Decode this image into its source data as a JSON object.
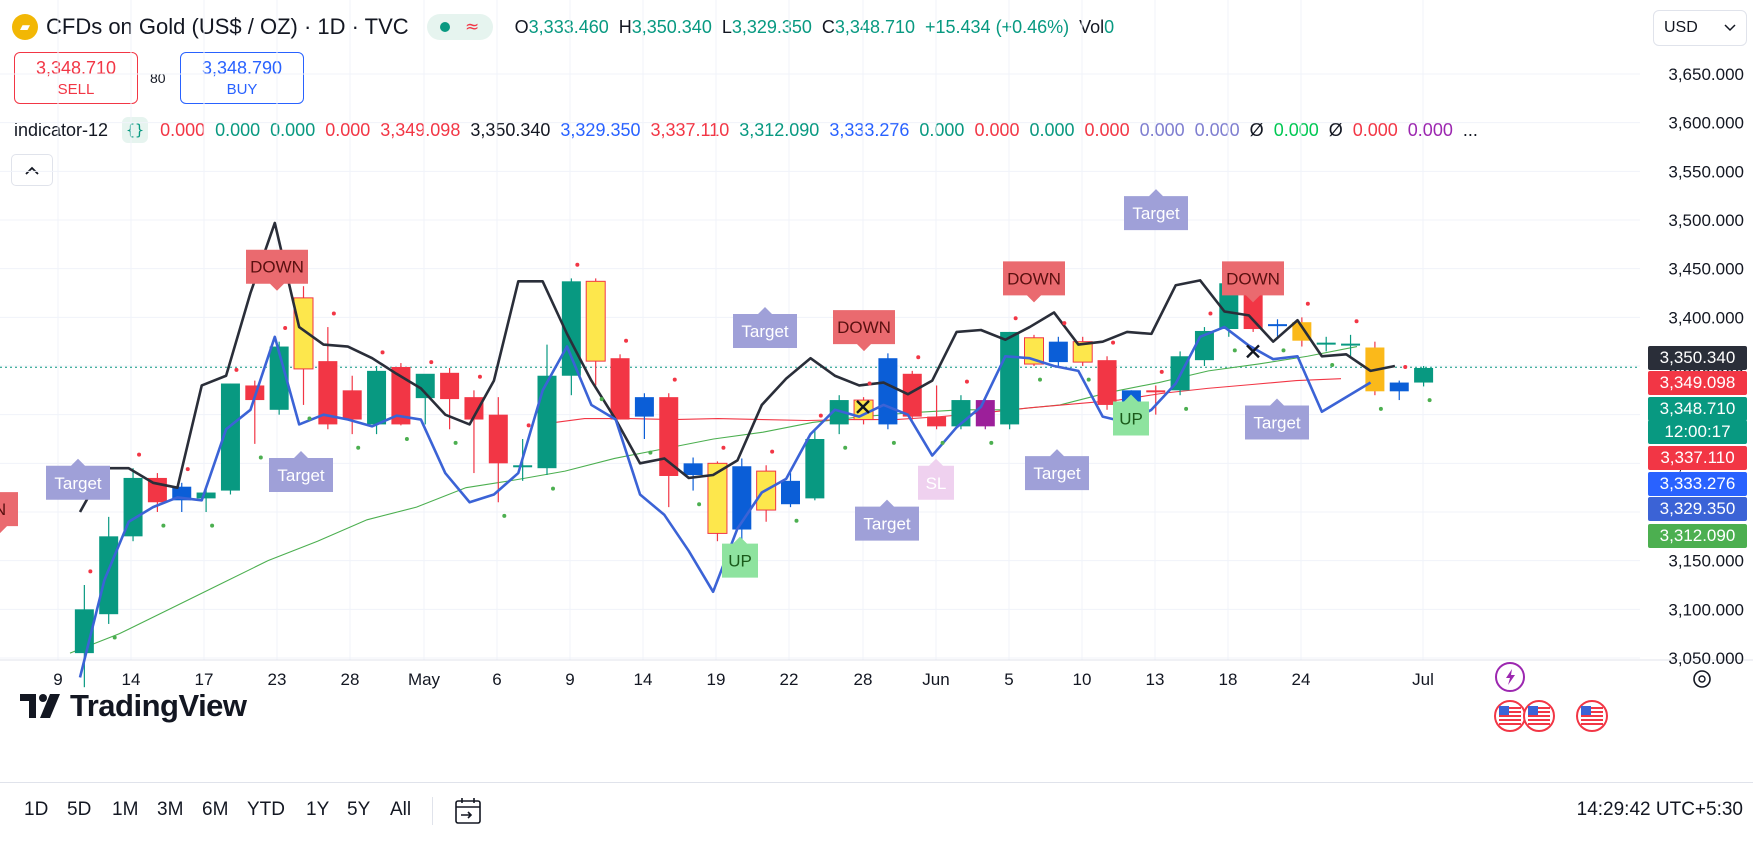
{
  "header": {
    "symbol_title": "CFDs on Gold (US$ / OZ) · 1D · TVC",
    "logo_icon": "gold-bars-icon",
    "market_status_icon": "market-open-dot-icon",
    "data_status_icon": "delayed-data-wave-icon",
    "ohlc": {
      "o_label": "O",
      "o_value": "3,333.460",
      "h_label": "H",
      "h_value": "3,350.340",
      "l_label": "L",
      "l_value": "3,329.350",
      "c_label": "C",
      "c_value": "3,348.710",
      "change": "+15.434 (+0.46%)",
      "vol_label": "Vol",
      "vol_value": "0"
    }
  },
  "currency": {
    "value": "USD",
    "icon": "chevron-down-icon"
  },
  "trade": {
    "sell_price": "3,348.710",
    "sell_label": "SELL",
    "spread": "80",
    "buy_price": "3,348.790",
    "buy_label": "BUY"
  },
  "indicator": {
    "name": "indicator-12",
    "icon": "source-code-braces-icon",
    "values": [
      {
        "text": "0.000",
        "color": "#f23645"
      },
      {
        "text": "0.000",
        "color": "#089981"
      },
      {
        "text": "0.000",
        "color": "#089981"
      },
      {
        "text": "0.000",
        "color": "#f23645"
      },
      {
        "text": "3,349.098",
        "color": "#f23645"
      },
      {
        "text": "3,350.340",
        "color": "#131722"
      },
      {
        "text": "3,329.350",
        "color": "#2962ff"
      },
      {
        "text": "3,337.110",
        "color": "#f23645"
      },
      {
        "text": "3,312.090",
        "color": "#089981"
      },
      {
        "text": "3,333.276",
        "color": "#2962ff"
      },
      {
        "text": "0.000",
        "color": "#089981"
      },
      {
        "text": "0.000",
        "color": "#f23645"
      },
      {
        "text": "0.000",
        "color": "#089981"
      },
      {
        "text": "0.000",
        "color": "#f23645"
      },
      {
        "text": "0.000",
        "color": "#7e7ed0"
      },
      {
        "text": "0.000",
        "color": "#7e7ed0"
      },
      {
        "text": "Ø",
        "color": "#131722"
      },
      {
        "text": "0.000",
        "color": "#00c853"
      },
      {
        "text": "Ø",
        "color": "#131722"
      },
      {
        "text": "0.000",
        "color": "#f23645"
      },
      {
        "text": "0.000",
        "color": "#9c27b0"
      },
      {
        "text": "...",
        "color": "#131722"
      }
    ]
  },
  "collapse_icon": "chevron-up-icon",
  "colors": {
    "up": "#089981",
    "down": "#f23645",
    "blue": "#0b5ed7",
    "yellow": "#fde74c",
    "purple": "#9c1f9a",
    "orange": "#fbb91a",
    "upper_line": "#2a2e39",
    "lower_line": "#3b63d6",
    "ma_red": "#f23645",
    "ma_green": "#4caf50",
    "label_purple": "#9fa0d8",
    "label_red": "#ea6a6f",
    "label_green": "#8ee39f"
  },
  "chart_data": {
    "type": "candlestick",
    "symbol": "CFDs on Gold (US$ / OZ)",
    "interval": "1D",
    "ylim": [
      3045,
      3685
    ],
    "price_axis_labels": [
      "3,650.000",
      "3,600.000",
      "3,550.000",
      "3,500.000",
      "3,450.000",
      "3,400.000",
      "3,350.000",
      "3,300.000",
      "3,250.000",
      "3,200.000",
      "3,150.000",
      "3,100.000",
      "3,050.000"
    ],
    "date_axis_labels": [
      "9",
      "14",
      "17",
      "23",
      "28",
      "May",
      "6",
      "9",
      "14",
      "19",
      "22",
      "28",
      "Jun",
      "5",
      "10",
      "13",
      "18",
      "24",
      "Jul"
    ],
    "candles": [
      {
        "o": 3055,
        "h": 3125,
        "l": 3020,
        "c": 3100,
        "color": "up"
      },
      {
        "o": 3095,
        "h": 3195,
        "l": 3085,
        "c": 3175,
        "color": "up"
      },
      {
        "o": 3175,
        "h": 3245,
        "l": 3170,
        "c": 3235,
        "color": "up"
      },
      {
        "o": 3210,
        "h": 3240,
        "l": 3200,
        "c": 3235,
        "color": "down"
      },
      {
        "o": 3212,
        "h": 3230,
        "l": 3200,
        "c": 3226,
        "color": "blue"
      },
      {
        "o": 3214,
        "h": 3225,
        "l": 3200,
        "c": 3220,
        "color": "up"
      },
      {
        "o": 3222,
        "h": 3332,
        "l": 3218,
        "c": 3332,
        "color": "up"
      },
      {
        "o": 3330,
        "h": 3335,
        "l": 3270,
        "c": 3315,
        "color": "down"
      },
      {
        "o": 3305,
        "h": 3375,
        "l": 3300,
        "c": 3370,
        "color": "up"
      },
      {
        "o": 3347,
        "h": 3432,
        "l": 3310,
        "c": 3420,
        "color": "yellow"
      },
      {
        "o": 3355,
        "h": 3390,
        "l": 3285,
        "c": 3290,
        "color": "down"
      },
      {
        "o": 3295,
        "h": 3340,
        "l": 3280,
        "c": 3325,
        "color": "down"
      },
      {
        "o": 3290,
        "h": 3350,
        "l": 3280,
        "c": 3345,
        "color": "up"
      },
      {
        "o": 3349,
        "h": 3353,
        "l": 3289,
        "c": 3290,
        "color": "down"
      },
      {
        "o": 3317,
        "h": 3340,
        "l": 3290,
        "c": 3342,
        "color": "up"
      },
      {
        "o": 3343,
        "h": 3348,
        "l": 3285,
        "c": 3316,
        "color": "down"
      },
      {
        "o": 3318,
        "h": 3325,
        "l": 3240,
        "c": 3295,
        "color": "down"
      },
      {
        "o": 3300,
        "h": 3318,
        "l": 3210,
        "c": 3250,
        "color": "down"
      },
      {
        "o": 3246,
        "h": 3275,
        "l": 3232,
        "c": 3248,
        "color": "up"
      },
      {
        "o": 3245,
        "h": 3372,
        "l": 3238,
        "c": 3340,
        "color": "up"
      },
      {
        "o": 3340,
        "h": 3440,
        "l": 3320,
        "c": 3437,
        "color": "up"
      },
      {
        "o": 3437,
        "h": 3440,
        "l": 3330,
        "c": 3355,
        "color": "yellow"
      },
      {
        "o": 3358,
        "h": 3362,
        "l": 3295,
        "c": 3295,
        "color": "down"
      },
      {
        "o": 3298,
        "h": 3322,
        "l": 3275,
        "c": 3318,
        "color": "blue"
      },
      {
        "o": 3318,
        "h": 3322,
        "l": 3205,
        "c": 3237,
        "color": "down"
      },
      {
        "o": 3250,
        "h": 3256,
        "l": 3222,
        "c": 3238,
        "color": "blue"
      },
      {
        "o": 3250,
        "h": 3252,
        "l": 3170,
        "c": 3178,
        "color": "yellow"
      },
      {
        "o": 3182,
        "h": 3255,
        "l": 3165,
        "c": 3247,
        "color": "blue"
      },
      {
        "o": 3242,
        "h": 3248,
        "l": 3190,
        "c": 3202,
        "color": "yellow"
      },
      {
        "o": 3208,
        "h": 3240,
        "l": 3205,
        "c": 3232,
        "color": "blue"
      },
      {
        "o": 3214,
        "h": 3285,
        "l": 3212,
        "c": 3275,
        "color": "up"
      },
      {
        "o": 3290,
        "h": 3320,
        "l": 3280,
        "c": 3315,
        "color": "up"
      },
      {
        "o": 3295,
        "h": 3318,
        "l": 3290,
        "c": 3315,
        "color": "yellow"
      },
      {
        "o": 3290,
        "h": 3363,
        "l": 3285,
        "c": 3358,
        "color": "blue"
      },
      {
        "o": 3342,
        "h": 3345,
        "l": 3295,
        "c": 3298,
        "color": "down"
      },
      {
        "o": 3298,
        "h": 3330,
        "l": 3285,
        "c": 3288,
        "color": "down"
      },
      {
        "o": 3288,
        "h": 3320,
        "l": 3285,
        "c": 3315,
        "color": "up"
      },
      {
        "o": 3288,
        "h": 3318,
        "l": 3285,
        "c": 3315,
        "color": "purple"
      },
      {
        "o": 3290,
        "h": 3385,
        "l": 3285,
        "c": 3385,
        "color": "up"
      },
      {
        "o": 3379,
        "h": 3382,
        "l": 3350,
        "c": 3352,
        "color": "yellow"
      },
      {
        "o": 3354,
        "h": 3380,
        "l": 3350,
        "c": 3375,
        "color": "blue"
      },
      {
        "o": 3375,
        "h": 3380,
        "l": 3350,
        "c": 3354,
        "color": "yellow"
      },
      {
        "o": 3356,
        "h": 3360,
        "l": 3305,
        "c": 3310,
        "color": "down"
      },
      {
        "o": 3310,
        "h": 3325,
        "l": 3300,
        "c": 3325,
        "color": "blue"
      },
      {
        "o": 3325,
        "h": 3330,
        "l": 3300,
        "c": 3325,
        "color": "down"
      },
      {
        "o": 3325,
        "h": 3365,
        "l": 3320,
        "c": 3360,
        "color": "up"
      },
      {
        "o": 3356,
        "h": 3390,
        "l": 3350,
        "c": 3386,
        "color": "up"
      },
      {
        "o": 3388,
        "h": 3435,
        "l": 3380,
        "c": 3435,
        "color": "up"
      },
      {
        "o": 3435,
        "h": 3440,
        "l": 3385,
        "c": 3388,
        "color": "down"
      },
      {
        "o": 3391,
        "h": 3398,
        "l": 3380,
        "c": 3393,
        "color": "blue"
      },
      {
        "o": 3395,
        "h": 3400,
        "l": 3370,
        "c": 3376,
        "color": "orange"
      },
      {
        "o": 3372,
        "h": 3380,
        "l": 3365,
        "c": 3374,
        "color": "up"
      },
      {
        "o": 3373,
        "h": 3382,
        "l": 3360,
        "c": 3373,
        "color": "up"
      },
      {
        "o": 3369,
        "h": 3375,
        "l": 3320,
        "c": 3324,
        "color": "orange"
      },
      {
        "o": 3324,
        "h": 3335,
        "l": 3315,
        "c": 3333,
        "color": "blue"
      },
      {
        "o": 3333,
        "h": 3350,
        "l": 3329,
        "c": 3348,
        "color": "up"
      }
    ],
    "upper_line": [
      3200,
      3245,
      3245,
      3230,
      3225,
      3330,
      3340,
      3425,
      3497,
      3390,
      3372,
      3370,
      3358,
      3342,
      3327,
      3300,
      3290,
      3335,
      3437,
      3437,
      3383,
      3335,
      3295,
      3250,
      3255,
      3235,
      3238,
      3253,
      3310,
      3337,
      3358,
      3340,
      3330,
      3333,
      3321,
      3335,
      3385,
      3387,
      3377,
      3390,
      3405,
      3372,
      3375,
      3385,
      3383,
      3433,
      3438,
      3406,
      3402,
      3375,
      3397,
      3360,
      3362,
      3345,
      3350
    ],
    "lower_line": [
      3030,
      3130,
      3190,
      3205,
      3215,
      3212,
      3285,
      3305,
      3380,
      3290,
      3300,
      3295,
      3288,
      3299,
      3295,
      3240,
      3210,
      3218,
      3240,
      3325,
      3370,
      3310,
      3295,
      3218,
      3197,
      3160,
      3118,
      3183,
      3220,
      3234,
      3280,
      3305,
      3298,
      3310,
      3300,
      3258,
      3287,
      3308,
      3360,
      3358,
      3350,
      3345,
      3298,
      3292,
      3305,
      3332,
      3380,
      3390,
      3371,
      3357,
      3360,
      3303,
      3318,
      3333
    ],
    "ma_red": [
      3290,
      3296,
      3296,
      3295,
      3296,
      3295,
      3294,
      3295,
      3295,
      3298,
      3302,
      3307,
      3311,
      3315,
      3322,
      3327,
      3331,
      3335,
      3337
    ],
    "ma_green": [
      3055,
      3075,
      3100,
      3125,
      3150,
      3170,
      3192,
      3205,
      3225,
      3233,
      3242,
      3255,
      3265,
      3275,
      3282,
      3292,
      3298,
      3302,
      3305,
      3305,
      3310,
      3323,
      3333,
      3345,
      3352,
      3360,
      3370
    ],
    "signals": [
      {
        "text": "DOWN",
        "kind": "down",
        "price": 3452
      },
      {
        "text": "Target",
        "kind": "target",
        "price": 3238
      },
      {
        "text": "Target",
        "kind": "target",
        "price": 3230
      },
      {
        "text": "Target",
        "kind": "target",
        "price": 3386
      },
      {
        "text": "DOWN",
        "kind": "down",
        "price": 3390
      },
      {
        "text": "UP",
        "kind": "up",
        "price": 3150
      },
      {
        "text": "Target",
        "kind": "target",
        "price": 3188
      },
      {
        "text": "SL",
        "kind": "sl",
        "price": 3230
      },
      {
        "text": "DOWN",
        "kind": "down",
        "price": 3440
      },
      {
        "text": "Target",
        "kind": "target",
        "price": 3240
      },
      {
        "text": "UP",
        "kind": "up",
        "price": 3296
      },
      {
        "text": "Target",
        "kind": "target",
        "price": 3507
      },
      {
        "text": "DOWN",
        "kind": "down",
        "price": 3440
      },
      {
        "text": "Target",
        "kind": "target",
        "price": 3292
      },
      {
        "text": "N",
        "kind": "down",
        "price": 3203
      }
    ],
    "price_tags": [
      {
        "text": "3,350.340",
        "color": "#2a2e39",
        "price": 3350.34
      },
      {
        "text": "3,349.098",
        "color": "#f23645",
        "price": 3349.1
      },
      {
        "text": "3,348.710",
        "color": "#089981",
        "price": 3348.71
      },
      {
        "text": "12:00:17",
        "color": "#089981",
        "price": 3336
      },
      {
        "text": "3,337.110",
        "color": "#f23645",
        "price": 3337.11
      },
      {
        "text": "3,333.276",
        "color": "#2962ff",
        "price": 3333.28
      },
      {
        "text": "3,329.350",
        "color": "#3b63d6",
        "price": 3329.35
      },
      {
        "text": "3,312.090",
        "color": "#4caf50",
        "price": 3312.09
      }
    ]
  },
  "watermark": {
    "text": "TradingView",
    "icon": "tradingview-logo-icon"
  },
  "events": {
    "icons": [
      "lightning-event-icon",
      "us-flag-icon",
      "us-flag-icon",
      "us-flag-icon"
    ]
  },
  "settings_icon": "gear-icon",
  "bottom": {
    "ranges": [
      "1D",
      "5D",
      "1M",
      "3M",
      "6M",
      "YTD",
      "1Y",
      "5Y",
      "All"
    ],
    "date_range_icon": "calendar-goto-icon",
    "clock": "14:29:42 UTC+5:30"
  }
}
